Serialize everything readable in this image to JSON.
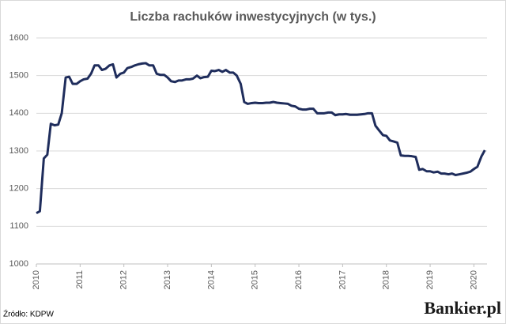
{
  "chart_data": {
    "type": "line",
    "title": "Liczba rachuków inwestycyjnych (w tys.)",
    "source": "Źródło: KDPW",
    "brand": "Bankier.pl",
    "color": "#1f2d5c",
    "grid": true,
    "xlim": [
      2010,
      2020.3
    ],
    "xticks": [
      2010,
      2011,
      2012,
      2013,
      2014,
      2015,
      2016,
      2017,
      2018,
      2019,
      2020
    ],
    "ylim": [
      1000,
      1600
    ],
    "yticks": [
      1000,
      1100,
      1200,
      1300,
      1400,
      1500,
      1600
    ],
    "x": [
      2010.0,
      2010.08,
      2010.17,
      2010.25,
      2010.33,
      2010.42,
      2010.5,
      2010.58,
      2010.67,
      2010.75,
      2010.83,
      2010.92,
      2011.0,
      2011.08,
      2011.17,
      2011.25,
      2011.33,
      2011.42,
      2011.5,
      2011.58,
      2011.67,
      2011.75,
      2011.83,
      2011.92,
      2012.0,
      2012.08,
      2012.17,
      2012.25,
      2012.33,
      2012.42,
      2012.5,
      2012.58,
      2012.67,
      2012.75,
      2012.83,
      2012.92,
      2013.0,
      2013.08,
      2013.17,
      2013.25,
      2013.33,
      2013.42,
      2013.5,
      2013.58,
      2013.67,
      2013.75,
      2013.83,
      2013.92,
      2014.0,
      2014.08,
      2014.17,
      2014.25,
      2014.33,
      2014.42,
      2014.5,
      2014.58,
      2014.67,
      2014.75,
      2014.83,
      2014.92,
      2015.0,
      2015.08,
      2015.17,
      2015.25,
      2015.33,
      2015.42,
      2015.5,
      2015.58,
      2015.67,
      2015.75,
      2015.83,
      2015.92,
      2016.0,
      2016.08,
      2016.17,
      2016.25,
      2016.33,
      2016.42,
      2016.5,
      2016.58,
      2016.67,
      2016.75,
      2016.83,
      2016.92,
      2017.0,
      2017.08,
      2017.17,
      2017.25,
      2017.33,
      2017.42,
      2017.5,
      2017.58,
      2017.67,
      2017.75,
      2017.83,
      2017.92,
      2018.0,
      2018.08,
      2018.17,
      2018.25,
      2018.33,
      2018.42,
      2018.5,
      2018.58,
      2018.67,
      2018.75,
      2018.83,
      2018.92,
      2019.0,
      2019.08,
      2019.17,
      2019.25,
      2019.33,
      2019.42,
      2019.5,
      2019.58,
      2019.67,
      2019.75,
      2019.83,
      2019.92,
      2020.0,
      2020.08,
      2020.17,
      2020.25
    ],
    "values": [
      1135,
      1140,
      1280,
      1290,
      1372,
      1368,
      1370,
      1400,
      1495,
      1497,
      1478,
      1478,
      1485,
      1490,
      1492,
      1505,
      1527,
      1527,
      1515,
      1518,
      1527,
      1530,
      1495,
      1505,
      1508,
      1520,
      1523,
      1527,
      1530,
      1532,
      1533,
      1527,
      1527,
      1505,
      1502,
      1502,
      1495,
      1485,
      1483,
      1487,
      1487,
      1490,
      1490,
      1492,
      1500,
      1493,
      1496,
      1497,
      1513,
      1512,
      1515,
      1510,
      1515,
      1508,
      1508,
      1500,
      1478,
      1430,
      1425,
      1427,
      1428,
      1427,
      1427,
      1428,
      1428,
      1430,
      1428,
      1427,
      1426,
      1425,
      1420,
      1418,
      1412,
      1410,
      1410,
      1412,
      1412,
      1400,
      1400,
      1400,
      1402,
      1402,
      1395,
      1397,
      1397,
      1398,
      1396,
      1396,
      1396,
      1397,
      1398,
      1400,
      1400,
      1367,
      1355,
      1342,
      1340,
      1328,
      1325,
      1322,
      1288,
      1287,
      1287,
      1286,
      1284,
      1250,
      1252,
      1246,
      1246,
      1243,
      1245,
      1240,
      1240,
      1238,
      1240,
      1236,
      1238,
      1240,
      1242,
      1245,
      1252,
      1258,
      1285,
      1302
    ]
  }
}
